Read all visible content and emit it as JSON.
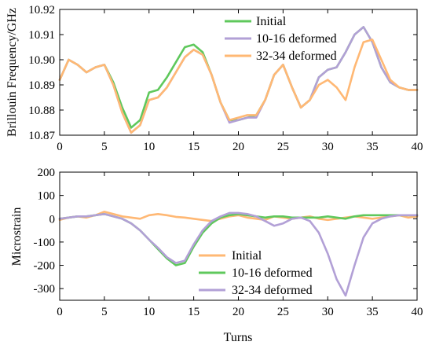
{
  "colors": {
    "green": "#5fc85c",
    "purple": "#b2a0d6",
    "orange": "#ffb874"
  },
  "chart_data": [
    {
      "type": "line",
      "xlabel": "",
      "ylabel": "Brillouin Frequency/GHz",
      "xlim": [
        0,
        40
      ],
      "ylim": [
        10.87,
        10.92
      ],
      "xticks": [
        0,
        5,
        10,
        15,
        20,
        25,
        30,
        35,
        40
      ],
      "xtick_labels": [
        "0",
        "5",
        "10",
        "15",
        "20",
        "25",
        "30",
        "35",
        "40"
      ],
      "yticks": [
        10.87,
        10.88,
        10.89,
        10.9,
        10.91,
        10.92
      ],
      "ytick_labels": [
        "10.87",
        "10.88",
        "10.89",
        "10.90",
        "10.91",
        "10.92"
      ],
      "legend_position": "top-right",
      "series": [
        {
          "name": "Initial",
          "color": "#5fc85c",
          "x": [
            0,
            1,
            2,
            3,
            4,
            5,
            6,
            7,
            8,
            9,
            10,
            11,
            12,
            13,
            14,
            15,
            16,
            17,
            18,
            19,
            20,
            21,
            22,
            23,
            24,
            25,
            26,
            27,
            28,
            29,
            30,
            31,
            32,
            33,
            34,
            35,
            36,
            37,
            38,
            39,
            40
          ],
          "values": [
            10.892,
            10.9,
            10.898,
            10.895,
            10.897,
            10.898,
            10.891,
            10.881,
            10.873,
            10.876,
            10.887,
            10.888,
            10.893,
            10.899,
            10.905,
            10.906,
            10.903,
            10.894,
            10.883,
            10.876,
            10.876,
            10.877,
            10.878,
            10.884,
            10.894,
            10.898,
            10.889,
            10.881,
            10.884,
            10.893,
            10.896,
            10.897,
            10.903,
            10.91,
            10.913,
            10.907,
            10.897,
            10.891,
            10.889,
            10.888,
            10.888
          ]
        },
        {
          "name": "10-16 deformed",
          "color": "#b2a0d6",
          "x": [
            0,
            1,
            2,
            3,
            4,
            5,
            6,
            7,
            8,
            9,
            10,
            11,
            12,
            13,
            14,
            15,
            16,
            17,
            18,
            19,
            20,
            21,
            22,
            23,
            24,
            25,
            26,
            27,
            28,
            29,
            30,
            31,
            32,
            33,
            34,
            35,
            36,
            37,
            38,
            39,
            40
          ],
          "values": [
            10.892,
            10.9,
            10.898,
            10.895,
            10.897,
            10.898,
            10.89,
            10.879,
            10.871,
            10.874,
            10.884,
            10.885,
            10.889,
            10.895,
            10.901,
            10.904,
            10.902,
            10.894,
            10.883,
            10.875,
            10.876,
            10.877,
            10.877,
            10.884,
            10.894,
            10.898,
            10.889,
            10.881,
            10.884,
            10.893,
            10.896,
            10.897,
            10.903,
            10.91,
            10.913,
            10.907,
            10.897,
            10.891,
            10.889,
            10.888,
            10.888
          ]
        },
        {
          "name": "32-34 deformed",
          "color": "#ffb874",
          "x": [
            0,
            1,
            2,
            3,
            4,
            5,
            6,
            7,
            8,
            9,
            10,
            11,
            12,
            13,
            14,
            15,
            16,
            17,
            18,
            19,
            20,
            21,
            22,
            23,
            24,
            25,
            26,
            27,
            28,
            29,
            30,
            31,
            32,
            33,
            34,
            35,
            36,
            37,
            38,
            39,
            40
          ],
          "values": [
            10.892,
            10.9,
            10.898,
            10.895,
            10.897,
            10.898,
            10.89,
            10.879,
            10.871,
            10.874,
            10.884,
            10.885,
            10.889,
            10.895,
            10.901,
            10.904,
            10.902,
            10.894,
            10.883,
            10.876,
            10.877,
            10.878,
            10.878,
            10.884,
            10.894,
            10.898,
            10.889,
            10.881,
            10.884,
            10.89,
            10.892,
            10.889,
            10.884,
            10.897,
            10.907,
            10.908,
            10.9,
            10.892,
            10.889,
            10.888,
            10.888
          ]
        }
      ]
    },
    {
      "type": "line",
      "xlabel": "Turns",
      "ylabel": "Microstrain",
      "xlim": [
        0,
        40
      ],
      "ylim": [
        -350,
        200
      ],
      "xticks": [
        0,
        5,
        10,
        15,
        20,
        25,
        30,
        35,
        40
      ],
      "xtick_labels": [
        "0",
        "5",
        "10",
        "15",
        "20",
        "25",
        "30",
        "35",
        "40"
      ],
      "yticks": [
        -300,
        -200,
        -100,
        0,
        100,
        200
      ],
      "ytick_labels": [
        "-300",
        "-200",
        "-100",
        "0",
        "100",
        "200"
      ],
      "legend_position": "bottom-center",
      "series": [
        {
          "name": "Initial",
          "color": "#ffb874",
          "x": [
            0,
            1,
            2,
            3,
            4,
            5,
            6,
            7,
            8,
            9,
            10,
            11,
            12,
            13,
            14,
            15,
            16,
            17,
            18,
            19,
            20,
            21,
            22,
            23,
            24,
            25,
            26,
            27,
            28,
            29,
            30,
            31,
            32,
            33,
            34,
            35,
            36,
            37,
            38,
            39,
            40
          ],
          "values": [
            -5,
            5,
            10,
            5,
            15,
            30,
            20,
            10,
            5,
            0,
            15,
            20,
            15,
            8,
            5,
            0,
            -5,
            -10,
            0,
            10,
            15,
            5,
            0,
            -5,
            10,
            5,
            0,
            5,
            10,
            0,
            -5,
            0,
            5,
            10,
            5,
            0,
            5,
            10,
            15,
            5,
            10
          ]
        },
        {
          "name": "10-16 deformed",
          "color": "#5fc85c",
          "x": [
            0,
            1,
            2,
            3,
            4,
            5,
            6,
            7,
            8,
            9,
            10,
            11,
            12,
            13,
            14,
            15,
            16,
            17,
            18,
            19,
            20,
            21,
            22,
            23,
            24,
            25,
            26,
            27,
            28,
            29,
            30,
            31,
            32,
            33,
            34,
            35,
            36,
            37,
            38,
            39,
            40
          ],
          "values": [
            0,
            5,
            10,
            10,
            15,
            20,
            10,
            0,
            -20,
            -50,
            -90,
            -130,
            -170,
            -200,
            -190,
            -120,
            -60,
            -20,
            5,
            15,
            20,
            15,
            10,
            5,
            10,
            10,
            5,
            5,
            5,
            5,
            10,
            5,
            0,
            10,
            15,
            15,
            15,
            15,
            15,
            15,
            15
          ]
        },
        {
          "name": "32-34 deformed",
          "color": "#b2a0d6",
          "x": [
            0,
            1,
            2,
            3,
            4,
            5,
            6,
            7,
            8,
            9,
            10,
            11,
            12,
            13,
            14,
            15,
            16,
            17,
            18,
            19,
            20,
            21,
            22,
            23,
            24,
            25,
            26,
            27,
            28,
            29,
            30,
            31,
            32,
            33,
            34,
            35,
            36,
            37,
            38,
            39,
            40
          ],
          "values": [
            0,
            5,
            10,
            10,
            15,
            20,
            10,
            0,
            -20,
            -50,
            -90,
            -125,
            -165,
            -190,
            -180,
            -110,
            -50,
            -10,
            10,
            25,
            25,
            20,
            10,
            -10,
            -30,
            -20,
            0,
            5,
            -10,
            -60,
            -150,
            -260,
            -330,
            -200,
            -80,
            -20,
            0,
            10,
            15,
            15,
            15
          ]
        }
      ]
    }
  ]
}
